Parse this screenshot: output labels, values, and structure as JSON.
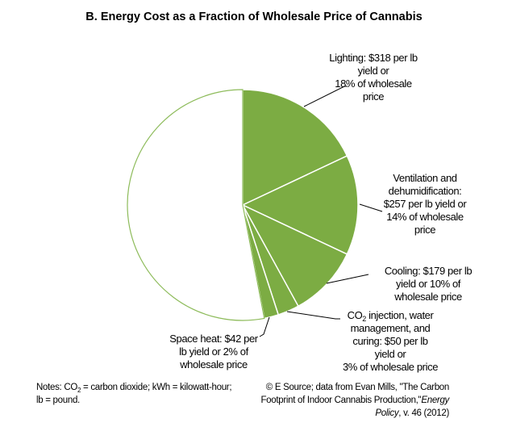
{
  "chart_data": {
    "type": "pie",
    "title": "B. Energy Cost as a Fraction of Wholesale Price of Cannabis",
    "slices": [
      {
        "category": "Lighting",
        "value": 18,
        "label_lines": [
          "Lighting: $318 per lb",
          "yield or",
          "18% of wholesale",
          "price"
        ]
      },
      {
        "category": "Ventilation and dehumidification",
        "value": 14,
        "label_lines": [
          "Ventilation and",
          "dehumidification:",
          "$257 per lb yield or",
          "14% of wholesale",
          "price"
        ]
      },
      {
        "category": "Cooling",
        "value": 10,
        "label_lines": [
          "Cooling: $179 per lb",
          "yield or 10% of",
          "wholesale price"
        ]
      },
      {
        "category": "CO2 injection, water management, and curing",
        "value": 3,
        "label_lines": [
          "CO2 injection, water",
          "management, and",
          "curing: $50 per lb",
          "yield or",
          "3% of wholesale price"
        ]
      },
      {
        "category": "Space heat",
        "value": 2,
        "label_lines": [
          "Space heat: $42 per",
          "lb yield or 2% of",
          "wholesale price"
        ]
      },
      {
        "category": "",
        "value": 53,
        "label_lines": []
      }
    ],
    "colors": {
      "energy": "#7cac43",
      "remainder": "#ffffff",
      "outline": "#8dbb5a"
    },
    "start": "top, clockwise"
  },
  "notes": {
    "line1": "Notes:  CO2 = carbon dioxide; kWh = kilowatt-hour;",
    "line2": "lb = pound."
  },
  "source": {
    "line1": "© E Source; data from  Evan Mills, \"The Carbon",
    "line2a": "Footprint of Indoor Cannabis Production,\"",
    "line2b": "Energy",
    "line3a": "Policy",
    "line3b": ", v. 46 (2012)"
  }
}
